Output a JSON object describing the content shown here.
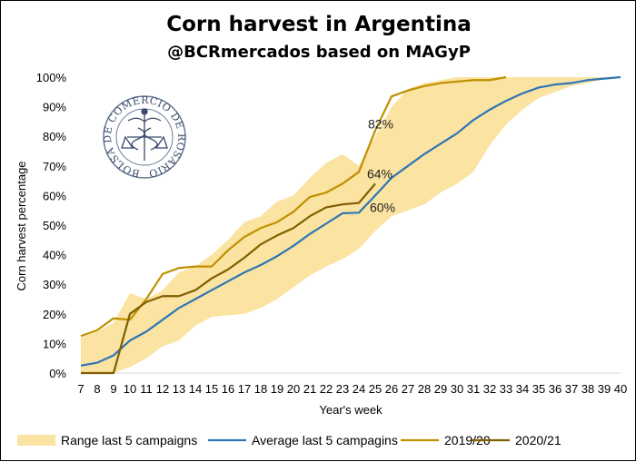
{
  "chart_data": {
    "type": "line",
    "title": "Corn harvest in Argentina",
    "subtitle": "@BCRmercados based on MAGyP",
    "xlabel": "Year's week",
    "ylabel": "Corn harvest percentage",
    "x": [
      7,
      8,
      9,
      10,
      11,
      12,
      13,
      14,
      15,
      16,
      17,
      18,
      19,
      20,
      21,
      22,
      23,
      24,
      25,
      26,
      27,
      28,
      29,
      30,
      31,
      32,
      33,
      34,
      35,
      36,
      37,
      38,
      39,
      40
    ],
    "xlim": [
      7,
      40
    ],
    "ylim": [
      0,
      100
    ],
    "yticks": [
      "0%",
      "10%",
      "20%",
      "30%",
      "40%",
      "50%",
      "60%",
      "70%",
      "80%",
      "90%",
      "100%"
    ],
    "grid": false,
    "legend_position": "bottom",
    "range": {
      "name": "Range last 5 campaigns",
      "color": "#fbe3a1",
      "x": [
        7,
        8,
        9,
        10,
        11,
        12,
        13,
        14,
        15,
        16,
        17,
        18,
        19,
        20,
        21,
        22,
        23,
        24,
        25,
        26,
        27,
        28,
        29,
        30,
        31,
        32,
        33,
        34,
        35,
        36,
        37,
        38,
        39,
        40
      ],
      "lower": [
        0,
        0,
        0,
        2,
        5,
        9,
        11,
        16,
        19,
        19.5,
        20,
        22,
        25,
        29,
        33,
        36,
        38.5,
        42,
        48,
        53,
        55,
        57,
        61,
        64,
        68,
        77,
        84,
        89,
        93,
        95,
        97,
        98,
        99.5,
        100
      ],
      "upper": [
        12,
        14,
        17,
        27,
        25,
        28,
        34,
        36,
        40,
        45,
        51,
        53,
        58,
        60,
        66,
        71,
        74,
        70,
        80,
        90,
        96,
        98,
        99,
        100,
        100,
        100,
        100,
        100,
        100,
        100,
        100,
        100,
        100,
        100
      ]
    },
    "series": [
      {
        "name": "Average last 5 campagins",
        "color": "#2e75b6",
        "x": [
          7,
          8,
          9,
          10,
          11,
          12,
          13,
          14,
          15,
          16,
          17,
          18,
          19,
          20,
          21,
          22,
          23,
          24,
          25,
          26,
          27,
          28,
          29,
          30,
          31,
          32,
          33,
          34,
          35,
          36,
          37,
          38,
          39,
          40
        ],
        "values": [
          2.5,
          3.5,
          6,
          11,
          14,
          18,
          22,
          25,
          28,
          31,
          34,
          36.5,
          39.5,
          43,
          47,
          50.5,
          54,
          54.2,
          60,
          66,
          70,
          74,
          77.5,
          81,
          85.5,
          89,
          92,
          94.5,
          96.5,
          97.5,
          98,
          99,
          99.5,
          100
        ]
      },
      {
        "name": "2019/20",
        "color": "#bf9000",
        "x": [
          7,
          8,
          9,
          10,
          11,
          12,
          13,
          14,
          15,
          16,
          17,
          18,
          19,
          20,
          21,
          22,
          23,
          24,
          25,
          26,
          27,
          28,
          29,
          30,
          31,
          32,
          33
        ],
        "values": [
          12.5,
          14.5,
          18.5,
          18,
          25,
          33.5,
          35.5,
          36,
          36,
          41.5,
          46,
          49,
          51,
          54.5,
          59.5,
          61,
          64,
          68,
          82,
          93.5,
          95.5,
          97,
          98,
          98.5,
          99,
          99,
          100
        ]
      },
      {
        "name": "2020/21",
        "color": "#7f5f00",
        "x": [
          7,
          8,
          9,
          10,
          11,
          12,
          13,
          14,
          15,
          16,
          17,
          18,
          19,
          20,
          21,
          22,
          23,
          24,
          25
        ],
        "values": [
          0,
          0,
          0,
          20,
          24,
          26,
          26,
          28,
          32,
          35,
          39,
          43.5,
          46.5,
          49,
          53,
          56,
          57,
          57.5,
          64
        ]
      }
    ],
    "annotations": [
      {
        "text": "82%",
        "x": 25,
        "y": 82
      },
      {
        "text": "64%",
        "x": 25,
        "y": 64
      },
      {
        "text": "60%",
        "x": 25,
        "y": 60
      }
    ],
    "logo": {
      "text": "BOLSA DE COMERCIO DE ROSARIO"
    }
  }
}
